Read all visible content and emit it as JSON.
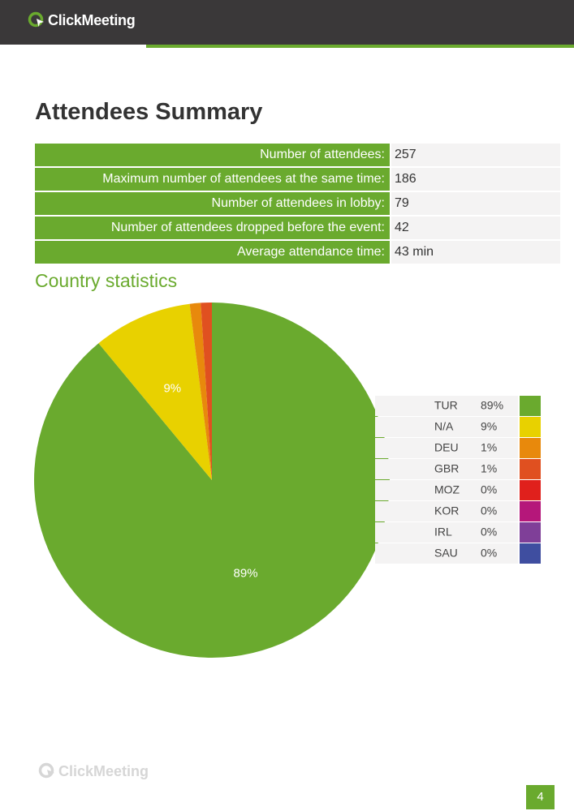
{
  "header": {
    "logo": "ClickMeeting"
  },
  "title": "Attendees Summary",
  "summary_table": {
    "rows": [
      [
        "Number of attendees:",
        257
      ],
      [
        "Maximum number of attendees at the same time:",
        186
      ],
      [
        "Number of attendees in lobby:",
        79
      ],
      [
        "Number of attendees dropped before the event:",
        42
      ],
      [
        "Average attendance time:",
        "43 min"
      ]
    ]
  },
  "chart_data": {
    "type": "pie",
    "title": "Country statistics",
    "categories": [
      "TUR",
      "N/A",
      "DEU",
      "GBR",
      "MOZ",
      "KOR",
      "IRL",
      "SAU"
    ],
    "values": [
      89,
      9,
      1,
      1,
      0,
      0,
      0,
      0
    ],
    "value_labels": [
      "89%",
      "9%",
      "1%",
      "1%",
      "0%",
      "0%",
      "0%",
      "0%"
    ],
    "colors": [
      "#6aaa2e",
      "#e8d100",
      "#e8890c",
      "#e05020",
      "#e0201c",
      "#b5177a",
      "#7f3f98",
      "#3f4ea0"
    ]
  },
  "footer": {
    "logo": "ClickMeeting",
    "page_number": 4
  }
}
